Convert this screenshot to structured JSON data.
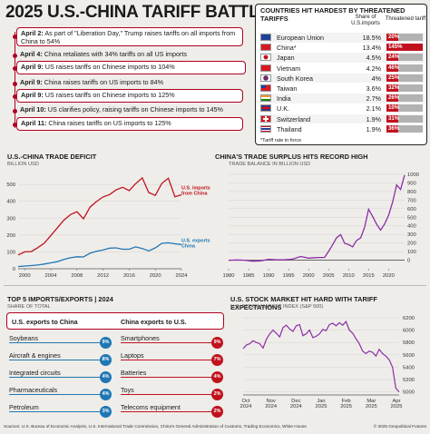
{
  "title": "2025 U.S.-CHINA TARIFF BATTLE",
  "timeline": [
    {
      "date": "April 2:",
      "text": "As part of \"Liberation Day,\" Trump raises tariffs on all imports from China to 54%",
      "text2": ""
    },
    {
      "date": "April 4:",
      "text": "China retaliates with 34% tariffs on all US imports"
    },
    {
      "date": "April 9:",
      "text": "US raises tariffs on Chinese imports to 104%"
    },
    {
      "date": "April 9:",
      "text": "China raises tariffs on US imports to 84%"
    },
    {
      "date": "April 9:",
      "text": "US raises tariffs on Chinese imports to 125%"
    },
    {
      "date": "April 10:",
      "text": "US clarifies policy, raising tariffs on Chinese imports to 145%"
    },
    {
      "date": "April 11:",
      "text": "China raises tariffs on US imports to 125%"
    }
  ],
  "countries_table": {
    "title": "COUNTRIES HIT HARDEST BY THREATENED TARIFFS",
    "col_share": "Share of U.S.imports",
    "col_tariff": "Threatened tariff",
    "rows": [
      {
        "country": "European Union",
        "share": "18.5%",
        "tariff": "20%",
        "tariff_value": 20,
        "flag": "eu-flag-icon"
      },
      {
        "country": "China*",
        "share": "13.4%",
        "tariff": "145%",
        "tariff_value": 145,
        "flag": "china-flag-icon"
      },
      {
        "country": "Japan",
        "share": "4.5%",
        "tariff": "24%",
        "tariff_value": 24,
        "flag": "japan-flag-icon"
      },
      {
        "country": "Vietnam",
        "share": "4.2%",
        "tariff": "46%",
        "tariff_value": 46,
        "flag": "vietnam-flag-icon"
      },
      {
        "country": "South Korea",
        "share": "4%",
        "tariff": "25%",
        "tariff_value": 25,
        "flag": "south-korea-flag-icon"
      },
      {
        "country": "Taiwan",
        "share": "3.6%",
        "tariff": "32%",
        "tariff_value": 32,
        "flag": "taiwan-flag-icon"
      },
      {
        "country": "India",
        "share": "2.7%",
        "tariff": "26%",
        "tariff_value": 26,
        "flag": "india-flag-icon"
      },
      {
        "country": "U.K.",
        "share": "2.1%",
        "tariff": "10%",
        "tariff_value": 10,
        "flag": "uk-flag-icon"
      },
      {
        "country": "Switzerland",
        "share": "1.9%",
        "tariff": "31%",
        "tariff_value": 31,
        "flag": "switzerland-flag-icon"
      },
      {
        "country": "Thailand",
        "share": "1.9%",
        "tariff": "36%",
        "tariff_value": 36,
        "flag": "thailand-flag-icon"
      }
    ],
    "note": "*Tariff rate in force"
  },
  "colors": {
    "red": "#c0121e",
    "blue": "#1f77b4",
    "purple": "#8b2fa8",
    "grey": "#b2b2b2"
  },
  "imports_exports": {
    "title": "TOP 5 IMPORTS/EXPORTS | 2024",
    "subtitle": "SHARE OF TOTAL",
    "us_header": "U.S. exports to China",
    "cn_header": "China exports to U.S.",
    "us_items": [
      {
        "label": "Soybeans",
        "pct": "9%"
      },
      {
        "label": "Aircraft & engines",
        "pct": "8%"
      },
      {
        "label": "Integrated circuits",
        "pct": "4%"
      },
      {
        "label": "Pharmaceuticals",
        "pct": "4%"
      },
      {
        "label": "Petroleum",
        "pct": "3%"
      }
    ],
    "cn_items": [
      {
        "label": "Smartphones",
        "pct": "9%"
      },
      {
        "label": "Laptops",
        "pct": "7%"
      },
      {
        "label": "Batteries",
        "pct": "4%"
      },
      {
        "label": "Toys",
        "pct": "2%"
      },
      {
        "label": "Telecoms equipment",
        "pct": "2%"
      }
    ]
  },
  "footer": "Sources: U.S. Bureau of Economic Analysis, U.S. International Trade Commission, China's General Administration of Customs, Trading Economics, White House",
  "copyright": "© 2025 Geopolitical Futures",
  "chart_data": [
    {
      "type": "line",
      "title": "U.S.-CHINA TRADE DEFICIT",
      "subtitle": "BILLION USD",
      "x": [
        1999,
        2000,
        2001,
        2002,
        2003,
        2004,
        2005,
        2006,
        2007,
        2008,
        2009,
        2010,
        2011,
        2012,
        2013,
        2014,
        2015,
        2016,
        2017,
        2018,
        2019,
        2020,
        2021,
        2022,
        2023,
        2024
      ],
      "xticks": [
        "2000",
        "2004",
        "2008",
        "2012",
        "2016",
        "2020",
        "2024"
      ],
      "yticks": [
        "0",
        "100",
        "200",
        "300",
        "400",
        "500"
      ],
      "ylim": [
        0,
        560
      ],
      "series": [
        {
          "name": "U.S. imports from China",
          "values": [
            82,
            100,
            102,
            125,
            152,
            197,
            243,
            288,
            321,
            338,
            296,
            365,
            399,
            426,
            440,
            468,
            483,
            463,
            505,
            539,
            452,
            435,
            506,
            537,
            427,
            439
          ]
        },
        {
          "name": "U.S. exports to China",
          "values": [
            13,
            16,
            19,
            22,
            28,
            35,
            42,
            55,
            65,
            71,
            70,
            92,
            104,
            111,
            122,
            124,
            116,
            116,
            130,
            120,
            106,
            124,
            151,
            154,
            148,
            144
          ]
        }
      ]
    },
    {
      "type": "line",
      "title": "CHINA'S TRADE SURPLUS HITS RECORD HIGH",
      "subtitle": "TRADE BALANCE IN BILLION USD",
      "x": [
        1980,
        1982,
        1984,
        1986,
        1988,
        1990,
        1992,
        1994,
        1996,
        1998,
        2000,
        2002,
        2004,
        2005,
        2006,
        2007,
        2008,
        2009,
        2010,
        2011,
        2012,
        2013,
        2014,
        2015,
        2016,
        2017,
        2018,
        2019,
        2020,
        2021,
        2022,
        2023,
        2024
      ],
      "xticks": [
        "1980",
        "1985",
        "1990",
        "1995",
        "2000",
        "2005",
        "2010",
        "2015",
        "2020"
      ],
      "yticks": [
        "0",
        "100",
        "200",
        "300",
        "400",
        "500",
        "600",
        "700",
        "800",
        "900",
        "1000"
      ],
      "ylim": [
        -100,
        1000
      ],
      "series": [
        {
          "name": "China trade balance",
          "values": [
            -2,
            3,
            -1,
            -12,
            -8,
            9,
            4,
            5,
            12,
            43,
            24,
            30,
            32,
            102,
            178,
            262,
            298,
            196,
            181,
            155,
            230,
            259,
            382,
            594,
            510,
            420,
            350,
            421,
            524,
            676,
            877,
            823,
            992
          ]
        }
      ]
    },
    {
      "type": "line",
      "title": "U.S. STOCK MARKET HIT HARD WITH TARIFF EXPECTATIONS",
      "subtitle": "U.S. STOCK MARKET INDEX (S&P 500)",
      "xticks": [
        "Oct\n2024",
        "Nov\n2024",
        "Dec\n2024",
        "Jan\n2025",
        "Feb\n2025",
        "Mar\n2025",
        "Apr\n2025"
      ],
      "yticks": [
        "5000",
        "5200",
        "5400",
        "5600",
        "5800",
        "6000",
        "6200"
      ],
      "ylim": [
        4950,
        6200
      ],
      "series": [
        {
          "name": "S&P 500",
          "values": [
            5700,
            5760,
            5780,
            5830,
            5800,
            5780,
            5710,
            5850,
            5940,
            6000,
            5950,
            5890,
            6040,
            6080,
            6020,
            5980,
            6070,
            6090,
            5910,
            5940,
            6000,
            5880,
            5900,
            5940,
            6010,
            5990,
            6090,
            6110,
            6070,
            6120,
            6080,
            6140,
            6000,
            5950,
            5860,
            5780,
            5660,
            5620,
            5660,
            5640,
            5580,
            5690,
            5620,
            5580,
            5520,
            5400,
            5060,
            5000
          ]
        }
      ]
    }
  ]
}
